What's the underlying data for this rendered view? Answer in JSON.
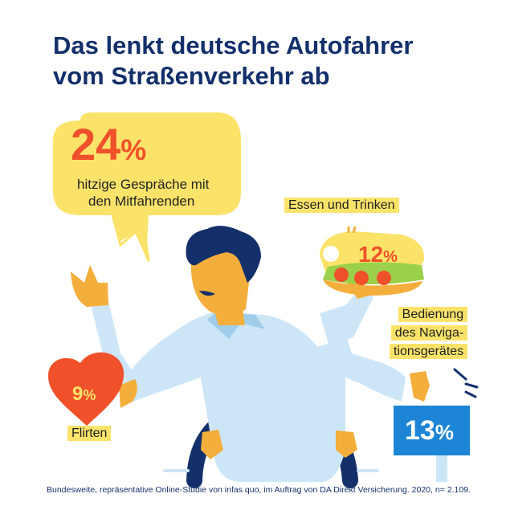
{
  "header": {
    "title_line1": "Das lenkt deutsche Autofahrer",
    "title_line2": "vom Straßenverkehr ab"
  },
  "chart_data": {
    "type": "infographic",
    "unit": "%",
    "items": [
      {
        "label_lines": [
          "hitzige Gespräche mit",
          "den Mitfahrenden"
        ],
        "value": 24,
        "display": "24"
      },
      {
        "label_lines": [
          "Essen und Trinken"
        ],
        "value": 12,
        "display": "12"
      },
      {
        "label_lines": [
          "Bedienung",
          "des Naviga-",
          "tionsgerätes"
        ],
        "value": 13,
        "display": "13"
      },
      {
        "label_lines": [
          "Flirten"
        ],
        "value": 9,
        "display": "9"
      }
    ]
  },
  "colors": {
    "title": "#14306b",
    "bubble": "#fbe36a",
    "accent_orange": "#f0512a",
    "heart": "#f0512a",
    "sign": "#1c85d6",
    "skin": "#f4ae3b",
    "shirt": "#cde6f7",
    "hair": "#14306b"
  },
  "footnote": "Bundesweite, repräsentative Online-Studie von infas quo, im Auftrag von DA Direkt Versicherung. 2020, n= 2.109."
}
